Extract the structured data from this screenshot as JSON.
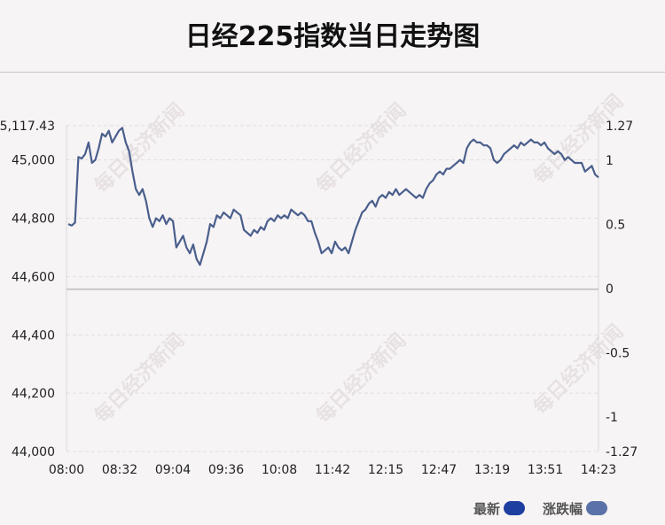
{
  "title": "日经225指数当日走势图",
  "watermark": "每日经济新闻",
  "legend": {
    "items": [
      {
        "label": "最新",
        "color": "#1f3fa0"
      },
      {
        "label": "涨跌幅",
        "color": "#5a72a8"
      }
    ]
  },
  "chart_data": {
    "type": "line",
    "line_color": "#4a5f8c",
    "zero_line_color": "#bbbbbb",
    "grid": "dashed-horizontal",
    "x_ticks": [
      "08:00",
      "08:32",
      "09:04",
      "09:36",
      "10:08",
      "11:42",
      "12:15",
      "12:47",
      "13:19",
      "13:51",
      "14:23"
    ],
    "y_left": {
      "ticks": [
        "45,117.43",
        "45,000",
        "44,800",
        "44,600",
        "44,400",
        "44,200",
        "44,000"
      ],
      "tick_values": [
        45117.43,
        45000,
        44800,
        44600,
        44400,
        44200,
        44000
      ],
      "range": [
        44000,
        45117.43
      ]
    },
    "y_right": {
      "ticks": [
        "1.27",
        "1",
        "0.5",
        "0",
        "-0.5",
        "-1",
        "-1.27"
      ],
      "tick_values": [
        1.27,
        1,
        0.5,
        0,
        -0.5,
        -1,
        -1.27
      ],
      "range": [
        -1.27,
        1.27
      ]
    },
    "zero_line_value": 44557,
    "series": [
      {
        "values": [
          44780,
          44775,
          44785,
          45010,
          45005,
          45020,
          45060,
          44990,
          45000,
          45040,
          45090,
          45080,
          45100,
          45060,
          45080,
          45100,
          45110,
          45060,
          45030,
          44960,
          44900,
          44880,
          44900,
          44860,
          44800,
          44770,
          44800,
          44790,
          44810,
          44780,
          44800,
          44790,
          44700,
          44720,
          44740,
          44700,
          44680,
          44710,
          44660,
          44640,
          44680,
          44720,
          44780,
          44770,
          44810,
          44800,
          44820,
          44810,
          44800,
          44830,
          44820,
          44810,
          44760,
          44750,
          44740,
          44760,
          44750,
          44770,
          44760,
          44790,
          44800,
          44790,
          44810,
          44800,
          44810,
          44800,
          44830,
          44820,
          44810,
          44820,
          44810,
          44790,
          44790,
          44750,
          44720,
          44680,
          44690,
          44700,
          44680,
          44720,
          44700,
          44690,
          44700,
          44680,
          44720,
          44760,
          44790,
          44820,
          44830,
          44850,
          44860,
          44840,
          44870,
          44880,
          44870,
          44890,
          44880,
          44900,
          44880,
          44890,
          44900,
          44890,
          44880,
          44870,
          44880,
          44870,
          44900,
          44920,
          44930,
          44950,
          44960,
          44950,
          44970,
          44970,
          44980,
          44990,
          45000,
          44990,
          45040,
          45060,
          45070,
          45060,
          45060,
          45050,
          45050,
          45040,
          45000,
          44990,
          45000,
          45020,
          45030,
          45040,
          45050,
          45040,
          45060,
          45050,
          45060,
          45070,
          45060,
          45060,
          45050,
          45060,
          45040,
          45030,
          45020,
          45030,
          45020,
          45000,
          45010,
          45000,
          44990,
          44990,
          44990,
          44960,
          44970,
          44980,
          44950,
          44940
        ]
      }
    ]
  }
}
